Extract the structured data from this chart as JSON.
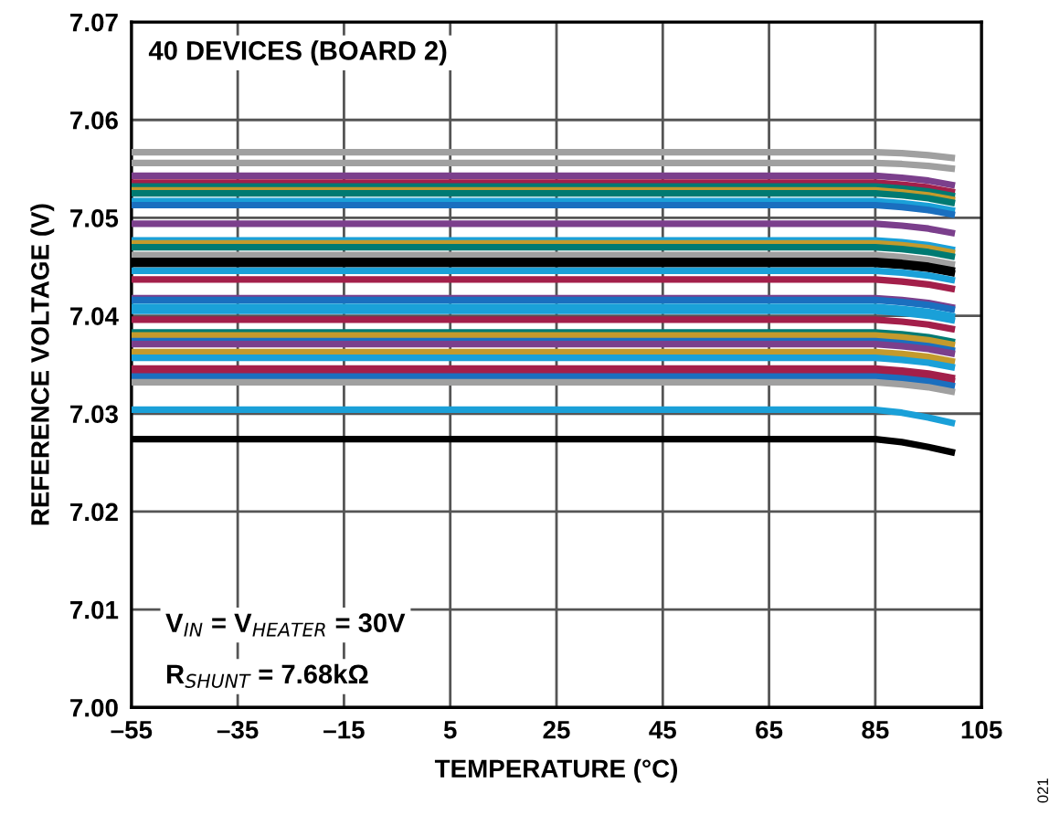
{
  "chart_data": {
    "type": "line",
    "xlabel": "TEMPERATURE (°C)",
    "ylabel": "REFERENCE VOLTAGE (V)",
    "annotations": [
      "40 DEVICES (BOARD 2)",
      "V$_{IN}$ = V$_{HEATER}$ = 30V",
      "R$_{SHUNT}$ = 7.68kΩ",
      "021"
    ],
    "x": [
      -55,
      85,
      90,
      95,
      100
    ],
    "xlim": [
      -55,
      105
    ],
    "xticks": [
      {
        "value": -55,
        "label": "–55"
      },
      {
        "value": -35,
        "label": "–35"
      },
      {
        "value": -15,
        "label": "–15"
      },
      5,
      25,
      45,
      65,
      85,
      105
    ],
    "ylim": [
      7.0,
      7.07
    ],
    "yticks": [
      {
        "value": 7.0,
        "label": "7.00"
      },
      {
        "value": 7.01,
        "label": "7.01"
      },
      {
        "value": 7.02,
        "label": "7.02"
      },
      {
        "value": 7.03,
        "label": "7.03"
      },
      {
        "value": 7.04,
        "label": "7.04"
      },
      {
        "value": 7.05,
        "label": "7.05"
      },
      {
        "value": 7.06,
        "label": "7.06"
      },
      {
        "value": 7.07,
        "label": "7.07"
      }
    ],
    "grid": true,
    "line_style": "solid",
    "marker": "none",
    "series": [
      {
        "color": "#a0a0a0",
        "values": [
          7.0567,
          7.0567,
          7.0566,
          7.0564,
          7.0561
        ]
      },
      {
        "color": "#a0a0a0",
        "values": [
          7.0556,
          7.0556,
          7.0555,
          7.0553,
          7.055
        ]
      },
      {
        "color": "#7b3f8c",
        "values": [
          7.0543,
          7.0543,
          7.0541,
          7.0538,
          7.0533
        ]
      },
      {
        "color": "#a31f4a",
        "values": [
          7.0536,
          7.0536,
          7.0534,
          7.0531,
          7.0526
        ]
      },
      {
        "color": "#007a72",
        "values": [
          7.0532,
          7.0532,
          7.053,
          7.0527,
          7.0522
        ]
      },
      {
        "color": "#c49a2c",
        "values": [
          7.0528,
          7.0528,
          7.0526,
          7.0523,
          7.0518
        ]
      },
      {
        "color": "#007a72",
        "values": [
          7.0525,
          7.0525,
          7.0523,
          7.052,
          7.0515
        ]
      },
      {
        "color": "#1aa0d8",
        "values": [
          7.0517,
          7.0517,
          7.0515,
          7.0512,
          7.0507
        ]
      },
      {
        "color": "#1a6fbf",
        "values": [
          7.0513,
          7.0513,
          7.0511,
          7.0508,
          7.0503
        ]
      },
      {
        "color": "#7b3f8c",
        "values": [
          7.0494,
          7.0494,
          7.0492,
          7.0489,
          7.0484
        ]
      },
      {
        "color": "#1aa0d8",
        "values": [
          7.0477,
          7.0477,
          7.0475,
          7.0472,
          7.0467
        ]
      },
      {
        "color": "#c49a2c",
        "values": [
          7.0474,
          7.0474,
          7.0472,
          7.0469,
          7.0464
        ]
      },
      {
        "color": "#007a72",
        "values": [
          7.047,
          7.047,
          7.0468,
          7.0465,
          7.046
        ]
      },
      {
        "color": "#a0a0a0",
        "values": [
          7.0462,
          7.0462,
          7.046,
          7.0457,
          7.0452
        ]
      },
      {
        "color": "#000000",
        "values": [
          7.0456,
          7.0456,
          7.0454,
          7.0451,
          7.0446
        ]
      },
      {
        "color": "#000000",
        "values": [
          7.0453,
          7.0453,
          7.0451,
          7.0448,
          7.0443
        ]
      },
      {
        "color": "#1aa0d8",
        "values": [
          7.0446,
          7.0446,
          7.0444,
          7.0441,
          7.0436
        ]
      },
      {
        "color": "#a31f4a",
        "values": [
          7.0437,
          7.0437,
          7.0435,
          7.0432,
          7.0427
        ]
      },
      {
        "color": "#7b3f8c",
        "values": [
          7.0418,
          7.0418,
          7.0416,
          7.0413,
          7.0408
        ]
      },
      {
        "color": "#1a6fbf",
        "values": [
          7.0416,
          7.0416,
          7.0414,
          7.0411,
          7.0406
        ]
      },
      {
        "color": "#1aa0d8",
        "values": [
          7.0409,
          7.0409,
          7.0407,
          7.0404,
          7.0399
        ]
      },
      {
        "color": "#1aa0d8",
        "values": [
          7.0405,
          7.0405,
          7.0403,
          7.04,
          7.0395
        ]
      },
      {
        "color": "#a31f4a",
        "values": [
          7.0396,
          7.0396,
          7.0394,
          7.0391,
          7.0386
        ]
      },
      {
        "color": "#007a72",
        "values": [
          7.0383,
          7.0383,
          7.0381,
          7.0378,
          7.0373
        ]
      },
      {
        "color": "#c49a2c",
        "values": [
          7.038,
          7.038,
          7.0378,
          7.0375,
          7.037
        ]
      },
      {
        "color": "#1a6fbf",
        "values": [
          7.0374,
          7.0374,
          7.0372,
          7.0369,
          7.0364
        ]
      },
      {
        "color": "#7b3f8c",
        "values": [
          7.0371,
          7.0371,
          7.0369,
          7.0366,
          7.0361
        ]
      },
      {
        "color": "#c49a2c",
        "values": [
          7.0363,
          7.0363,
          7.0361,
          7.0358,
          7.0353
        ]
      },
      {
        "color": "#1aa0d8",
        "values": [
          7.0357,
          7.0357,
          7.0355,
          7.0352,
          7.0347
        ]
      },
      {
        "color": "#a31f4a",
        "values": [
          7.0346,
          7.0346,
          7.0344,
          7.0341,
          7.0336
        ]
      },
      {
        "color": "#a31f4a",
        "values": [
          7.0343,
          7.0343,
          7.0341,
          7.0338,
          7.0333
        ]
      },
      {
        "color": "#1a6fbf",
        "values": [
          7.0338,
          7.0338,
          7.0336,
          7.0333,
          7.0328
        ]
      },
      {
        "color": "#a0a0a0",
        "values": [
          7.0332,
          7.0332,
          7.033,
          7.0327,
          7.0322
        ]
      },
      {
        "color": "#1aa0d8",
        "values": [
          7.0304,
          7.0304,
          7.0301,
          7.0296,
          7.029
        ]
      },
      {
        "color": "#000000",
        "values": [
          7.0274,
          7.0274,
          7.0271,
          7.0266,
          7.026
        ]
      }
    ]
  }
}
